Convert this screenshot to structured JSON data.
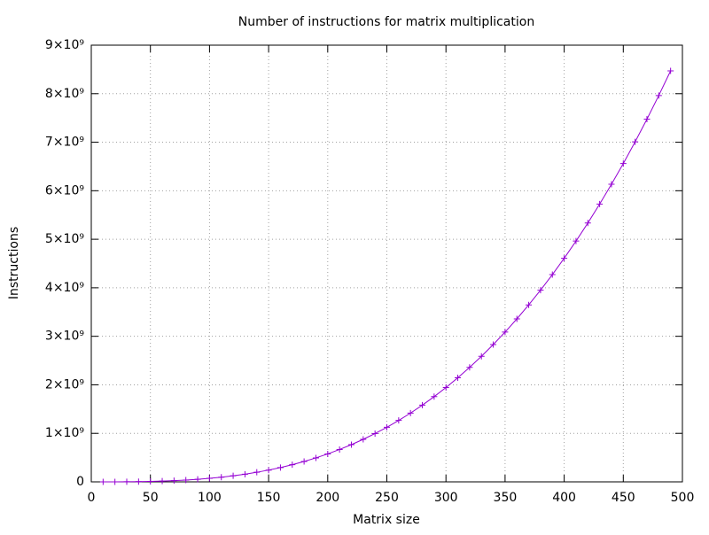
{
  "chart_data": {
    "type": "line",
    "title": "Number of instructions for matrix multiplication",
    "xlabel": "Matrix size",
    "ylabel": "Instructions",
    "x": [
      10,
      20,
      30,
      40,
      50,
      60,
      70,
      80,
      90,
      100,
      110,
      120,
      130,
      140,
      150,
      160,
      170,
      180,
      190,
      200,
      210,
      220,
      230,
      240,
      250,
      260,
      270,
      280,
      290,
      300,
      310,
      320,
      330,
      340,
      350,
      360,
      370,
      380,
      390,
      400,
      410,
      420,
      430,
      440,
      450,
      460,
      470,
      480,
      490
    ],
    "values": [
      72000,
      576000,
      1944000,
      4608000,
      9000000,
      15552000,
      24696000,
      36864000,
      52488000,
      72000000,
      95832000,
      124416000,
      158184000,
      197568000,
      243000000,
      294912000,
      353736000,
      419904000,
      493848000,
      576000000,
      666792000,
      766656000,
      876024000,
      995328000,
      1125000000,
      1265472000,
      1417176000,
      1580544000,
      1756008000,
      1944000000,
      2144952000,
      2359296000,
      2587464000,
      2829888000,
      3087000000,
      3359232000,
      3647016000,
      3950784000,
      4270968000,
      4608000000,
      4962312000,
      5334336000,
      5724504000,
      6133248000,
      6561000000,
      7008192000,
      7475544000,
      7962624000,
      8470728000
    ],
    "color": "#9400d3",
    "xlim": [
      0,
      500
    ],
    "xticks": [
      0,
      50,
      100,
      150,
      200,
      250,
      300,
      350,
      400,
      450,
      500
    ],
    "ylim": [
      0,
      9000000000
    ],
    "yticks": [
      0,
      {
        "value": 1000000000,
        "label": "1×10⁹"
      },
      {
        "value": 2000000000,
        "label": "2×10⁹"
      },
      {
        "value": 3000000000,
        "label": "3×10⁹"
      },
      {
        "value": 4000000000,
        "label": "4×10⁹"
      },
      {
        "value": 5000000000,
        "label": "5×10⁹"
      },
      {
        "value": 6000000000,
        "label": "6×10⁹"
      },
      {
        "value": 7000000000,
        "label": "7×10⁹"
      },
      {
        "value": 8000000000,
        "label": "8×10⁹"
      },
      {
        "value": 9000000000,
        "label": "9×10⁹"
      }
    ],
    "grid": true
  }
}
